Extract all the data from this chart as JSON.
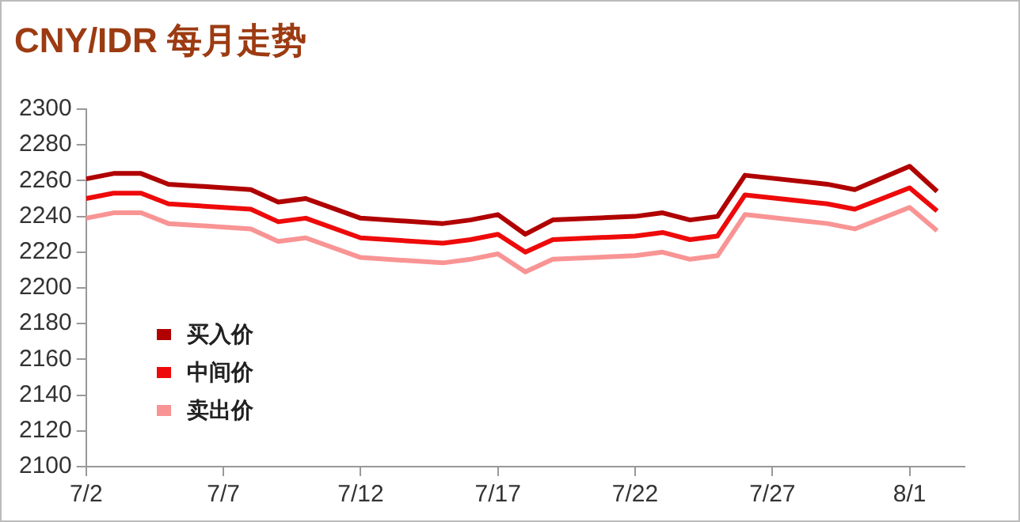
{
  "chart_data": {
    "type": "line",
    "title": "CNY/IDR 每月走势",
    "x": [
      "--07-02",
      "--07-03",
      "--07-04",
      "--07-05",
      "--07-08",
      "--07-09",
      "--07-10",
      "--07-12",
      "--07-15",
      "--07-16",
      "--07-17",
      "--07-18",
      "--07-19",
      "--07-22",
      "--07-23",
      "--07-24",
      "--07-25",
      "--07-26",
      "--07-29",
      "--07-30",
      "--08-01",
      "--08-02"
    ],
    "series": [
      {
        "name": "买入价",
        "color": "#b00000",
        "values": [
          2261,
          2264,
          2264,
          2258,
          2255,
          2248,
          2250,
          2239,
          2236,
          2238,
          2241,
          2230,
          2238,
          2240,
          2242,
          2238,
          2240,
          2263,
          2258,
          2255,
          2268,
          2254
        ]
      },
      {
        "name": "中间价",
        "color": "#ee0a0a",
        "values": [
          2250,
          2253,
          2253,
          2247,
          2244,
          2237,
          2239,
          2228,
          2225,
          2227,
          2230,
          2220,
          2227,
          2229,
          2231,
          2227,
          2229,
          2252,
          2247,
          2244,
          2256,
          2243
        ]
      },
      {
        "name": "卖出价",
        "color": "#f99494",
        "values": [
          2239,
          2242,
          2242,
          2236,
          2233,
          2226,
          2228,
          2217,
          2214,
          2216,
          2219,
          2209,
          2216,
          2218,
          2220,
          2216,
          2218,
          2241,
          2236,
          2233,
          2245,
          2232
        ]
      }
    ],
    "xlim": [
      "--07-02",
      "--08-03"
    ],
    "xticks": [
      {
        "value": "--07-02",
        "label": "7/2"
      },
      {
        "value": "--07-07",
        "label": "7/7"
      },
      {
        "value": "--07-12",
        "label": "7/12"
      },
      {
        "value": "--07-17",
        "label": "7/17"
      },
      {
        "value": "--07-22",
        "label": "7/22"
      },
      {
        "value": "--07-27",
        "label": "7/27"
      },
      {
        "value": "--08-01",
        "label": "8/1"
      }
    ],
    "ylim": [
      2100,
      2300
    ],
    "yticks": [
      2100,
      2120,
      2140,
      2160,
      2180,
      2200,
      2220,
      2240,
      2260,
      2280,
      2300
    ],
    "grid": false,
    "legend": "bottom left",
    "marker": "none",
    "line_style": "solid"
  }
}
